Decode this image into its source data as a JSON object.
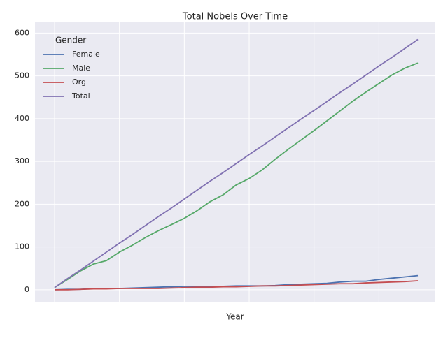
{
  "chart_data": {
    "type": "line",
    "title": "Total Nobels Over Time",
    "x_label": "Year",
    "categories": [
      null,
      null,
      null,
      null,
      null,
      null,
      null,
      null,
      null,
      null,
      null,
      null,
      null,
      null,
      null,
      null,
      null,
      null,
      null,
      null,
      null,
      null,
      null,
      null,
      null,
      null,
      null,
      null,
      null
    ],
    "series": [
      {
        "name": "Female",
        "color": "#4c72b0",
        "values": [
          0,
          1,
          1,
          3,
          3,
          3,
          4,
          5,
          6,
          7,
          8,
          8,
          8,
          8,
          9,
          9,
          9,
          10,
          12,
          13,
          14,
          15,
          18,
          20,
          20,
          24,
          27,
          30,
          33
        ]
      },
      {
        "name": "Male",
        "color": "#55a868",
        "values": [
          5,
          24,
          44,
          60,
          68,
          88,
          104,
          122,
          138,
          152,
          167,
          185,
          206,
          222,
          245,
          260,
          280,
          305,
          328,
          350,
          372,
          395,
          418,
          441,
          462,
          482,
          502,
          518,
          530
        ]
      },
      {
        "name": "Org",
        "color": "#c44e52",
        "values": [
          0,
          0,
          1,
          2,
          2,
          3,
          3,
          3,
          3,
          4,
          5,
          6,
          6,
          7,
          7,
          8,
          9,
          9,
          10,
          11,
          12,
          13,
          14,
          14,
          16,
          17,
          18,
          19,
          21
        ]
      },
      {
        "name": "Total",
        "color": "#8172b2",
        "values": [
          5,
          26,
          46,
          67,
          88,
          109,
          129,
          150,
          171,
          191,
          212,
          233,
          254,
          274,
          295,
          316,
          336,
          357,
          378,
          399,
          419,
          440,
          461,
          481,
          502,
          523,
          543,
          564,
          585
        ]
      }
    ],
    "legend_title": "Gender",
    "legend": "upper left",
    "ylim": [
      -28,
      625
    ],
    "yticks": [
      0,
      100,
      200,
      300,
      400,
      500,
      600
    ],
    "grid": true
  }
}
